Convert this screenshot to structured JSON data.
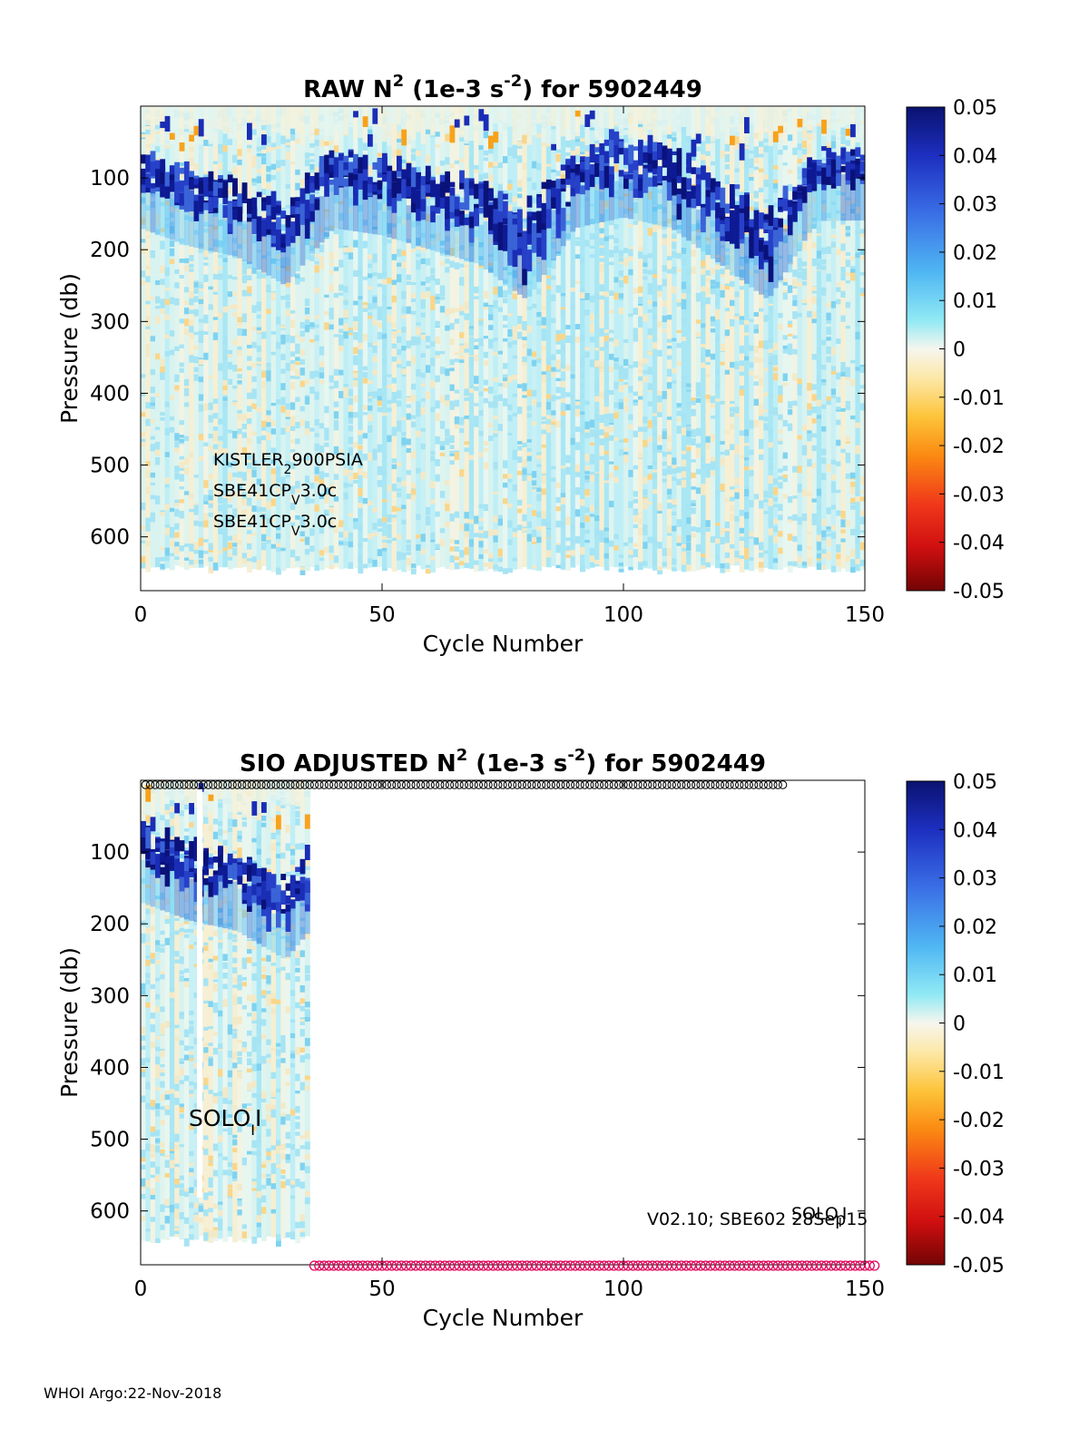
{
  "chart_data": [
    {
      "type": "heatmap",
      "title": "RAW N2 (1e-3 s-2) for 5902449",
      "title_parts": {
        "a": "RAW N",
        "sup1": "2",
        "b": " (1e-3 s",
        "sup2": "-2",
        "c": ") for 5902449"
      },
      "xlabel": "Cycle Number",
      "ylabel": "Pressure (db)",
      "xlim": [
        0,
        150
      ],
      "ylim": [
        0,
        675
      ],
      "y_reversed": true,
      "xticks": [
        0,
        50,
        100,
        150
      ],
      "yticks": [
        100,
        200,
        300,
        400,
        500,
        600
      ],
      "cycles_shown": [
        0,
        150
      ],
      "profile_bottom_db": 645,
      "colorbar": {
        "range": [
          -0.05,
          0.05
        ],
        "ticks": [
          "0.05",
          "0.04",
          "0.03",
          "0.02",
          "0.01",
          "0",
          "-0.01",
          "-0.02",
          "-0.03",
          "-0.04",
          "-0.05"
        ]
      },
      "annotations": [
        {
          "main": "KISTLER",
          "sub": "2",
          "rest": "900PSIA"
        },
        {
          "main": "SBE41CP",
          "sub": "V",
          "rest": "3.0c"
        },
        {
          "main": "SBE41CP",
          "sub": "V",
          "rest": "3.0c"
        }
      ],
      "stratified_layer": [
        {
          "cycle": 0,
          "top_db": 60,
          "bottom_db": 110
        },
        {
          "cycle": 10,
          "top_db": 80,
          "bottom_db": 135
        },
        {
          "cycle": 20,
          "top_db": 100,
          "bottom_db": 150
        },
        {
          "cycle": 30,
          "top_db": 130,
          "bottom_db": 190
        },
        {
          "cycle": 40,
          "top_db": 55,
          "bottom_db": 110
        },
        {
          "cycle": 50,
          "top_db": 70,
          "bottom_db": 120
        },
        {
          "cycle": 60,
          "top_db": 80,
          "bottom_db": 140
        },
        {
          "cycle": 70,
          "top_db": 100,
          "bottom_db": 160
        },
        {
          "cycle": 80,
          "top_db": 130,
          "bottom_db": 210
        },
        {
          "cycle": 90,
          "top_db": 60,
          "bottom_db": 110
        },
        {
          "cycle": 100,
          "top_db": 30,
          "bottom_db": 95
        },
        {
          "cycle": 110,
          "top_db": 50,
          "bottom_db": 110
        },
        {
          "cycle": 120,
          "top_db": 100,
          "bottom_db": 160
        },
        {
          "cycle": 130,
          "top_db": 140,
          "bottom_db": 210
        },
        {
          "cycle": 140,
          "top_db": 60,
          "bottom_db": 100
        }
      ]
    },
    {
      "type": "heatmap",
      "title": "SIO  ADJUSTED N2 (1e-3 s-2) for 5902449",
      "title_parts": {
        "a": "SIO  ADJUSTED N",
        "sup1": "2",
        "b": " (1e-3 s",
        "sup2": "-2",
        "c": ") for 5902449"
      },
      "xlabel": "Cycle Number",
      "ylabel": "Pressure (db)",
      "xlim": [
        0,
        150
      ],
      "ylim": [
        0,
        675
      ],
      "y_reversed": true,
      "xticks": [
        0,
        50,
        100,
        150
      ],
      "yticks": [
        100,
        200,
        300,
        400,
        500,
        600
      ],
      "cycles_shown": [
        0,
        35
      ],
      "gap_cycle": 12,
      "profile_bottom_db": 640,
      "colorbar": {
        "range": [
          -0.05,
          0.05
        ],
        "ticks": [
          "0.05",
          "0.04",
          "0.03",
          "0.02",
          "0.01",
          "0",
          "-0.01",
          "-0.02",
          "-0.03",
          "-0.04",
          "-0.05"
        ]
      },
      "annotations": [
        {
          "main": "SOLO",
          "sub": "I",
          "rest": "I"
        },
        {
          "main": "SOLO",
          "sub": "I",
          "rest": "I"
        }
      ],
      "footnote": "V02.10; SBE602 28Sep15",
      "top_markers": {
        "from_cycle": 1,
        "to_cycle": 133,
        "color": "#000000"
      },
      "bottom_markers": {
        "from_cycle": 36,
        "to_cycle": 152,
        "color": "#e0005a"
      }
    }
  ],
  "footer": "WHOI Argo:22-Nov-2018"
}
